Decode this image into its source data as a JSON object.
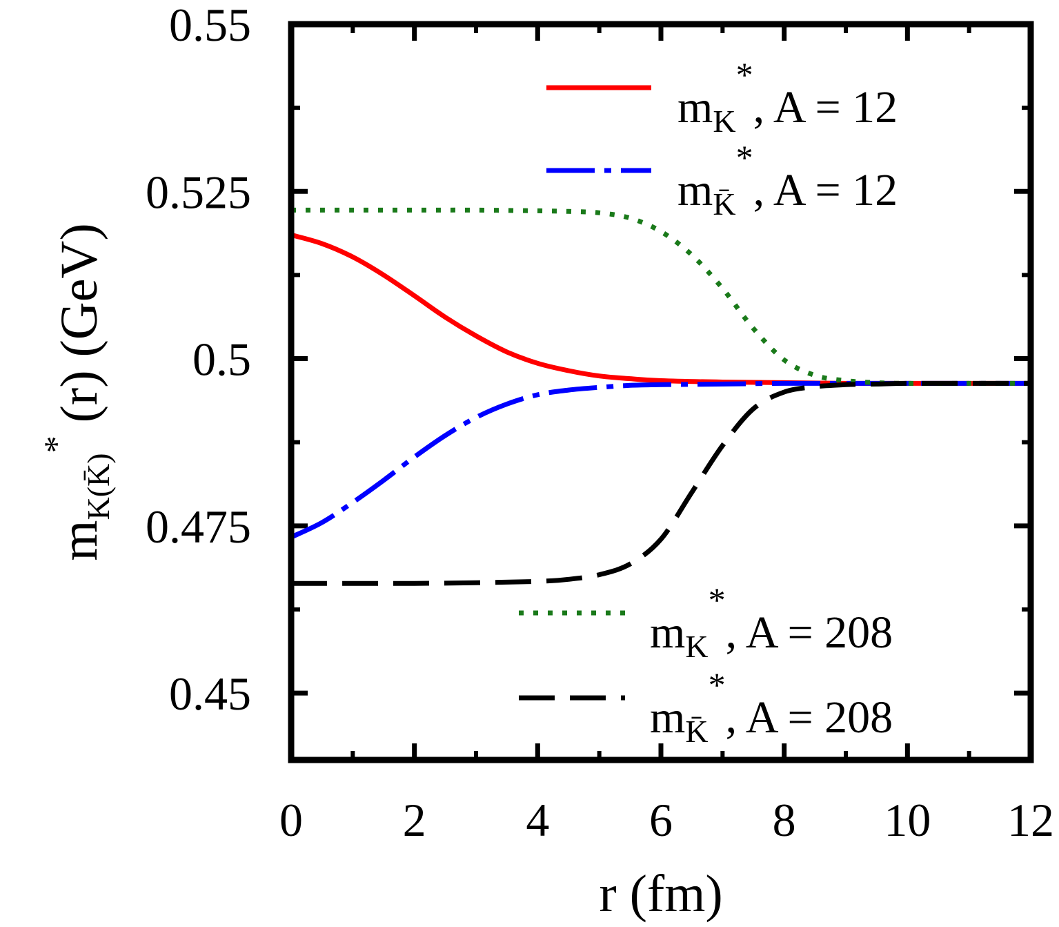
{
  "chart_data": {
    "type": "line",
    "xlabel": "r (fm)",
    "ylabel": {
      "main": "m",
      "subscript": "K(K̄)",
      "superscript": "*",
      "suffix": " (r) (GeV)"
    },
    "xlim": [
      0,
      12
    ],
    "ylim": [
      0.44,
      0.55
    ],
    "xticks": [
      0,
      2,
      4,
      6,
      8,
      10,
      12
    ],
    "yticks": [
      0.45,
      0.475,
      0.5,
      0.525,
      0.55
    ],
    "xtick_labels": [
      "0",
      "2",
      "4",
      "6",
      "8",
      "10",
      "12"
    ],
    "ytick_labels": [
      "0.45",
      "0.475",
      "0.5",
      "0.525",
      "0.55"
    ],
    "grid": false,
    "series": [
      {
        "name": "m_K*, A = 12",
        "legend": {
          "main": "m",
          "sub": "K",
          "sup": "*",
          "rest": ", A =  12"
        },
        "color": "#ff0000",
        "dash": "solid",
        "x": [
          0,
          0.5,
          1,
          1.5,
          2,
          2.5,
          3,
          3.5,
          4,
          4.5,
          5,
          5.5,
          6,
          7,
          8,
          9,
          10,
          11,
          12
        ],
        "y": [
          0.5185,
          0.5172,
          0.5152,
          0.5125,
          0.5094,
          0.5062,
          0.5034,
          0.501,
          0.4993,
          0.4982,
          0.4974,
          0.497,
          0.4967,
          0.4965,
          0.4964,
          0.4963,
          0.4963,
          0.4963,
          0.4963
        ]
      },
      {
        "name": "m_K̄*, A = 12",
        "legend": {
          "main": "m",
          "sub": "K̄",
          "sup": "*",
          "rest": ", A =  12"
        },
        "color": "#0000ff",
        "dash": "long-dash-dot",
        "x": [
          0,
          0.5,
          1,
          1.5,
          2,
          2.5,
          3,
          3.5,
          4,
          4.5,
          5,
          5.5,
          6,
          7,
          8,
          9,
          10,
          11,
          12
        ],
        "y": [
          0.4733,
          0.4755,
          0.4785,
          0.4818,
          0.4853,
          0.4885,
          0.4912,
          0.4932,
          0.4946,
          0.4953,
          0.4957,
          0.496,
          0.4961,
          0.4962,
          0.4963,
          0.4963,
          0.4963,
          0.4963,
          0.4963
        ]
      },
      {
        "name": "m_K*, A = 208",
        "legend": {
          "main": "m",
          "sub": "K",
          "sup": "*",
          "rest": ", A =  208"
        },
        "color": "#1a7a1a",
        "dash": "dotted",
        "x": [
          0,
          1,
          2,
          3,
          4,
          4.5,
          5,
          5.5,
          6,
          6.5,
          7,
          7.5,
          8,
          8.5,
          9,
          9.5,
          10,
          11,
          12
        ],
        "y": [
          0.5222,
          0.5222,
          0.5222,
          0.5222,
          0.5221,
          0.522,
          0.5218,
          0.521,
          0.519,
          0.5155,
          0.5105,
          0.5045,
          0.4998,
          0.4975,
          0.4967,
          0.4964,
          0.4963,
          0.4963,
          0.4963
        ]
      },
      {
        "name": "m_K̄*, A = 208",
        "legend": {
          "main": "m",
          "sub": "K̄",
          "sup": "*",
          "rest": ", A =  208"
        },
        "color": "#000000",
        "dash": "long-dash",
        "x": [
          0,
          1,
          2,
          3,
          4,
          4.5,
          5,
          5.5,
          6,
          6.5,
          7,
          7.5,
          8,
          8.5,
          9,
          9.5,
          10,
          11,
          12
        ],
        "y": [
          0.4664,
          0.4664,
          0.4664,
          0.4665,
          0.4667,
          0.467,
          0.4677,
          0.4693,
          0.473,
          0.48,
          0.487,
          0.4925,
          0.495,
          0.4958,
          0.4961,
          0.4962,
          0.4963,
          0.4963,
          0.4963
        ]
      }
    ],
    "legend_placement": [
      "top-right",
      "top-right",
      "bottom-right",
      "bottom-right"
    ]
  }
}
